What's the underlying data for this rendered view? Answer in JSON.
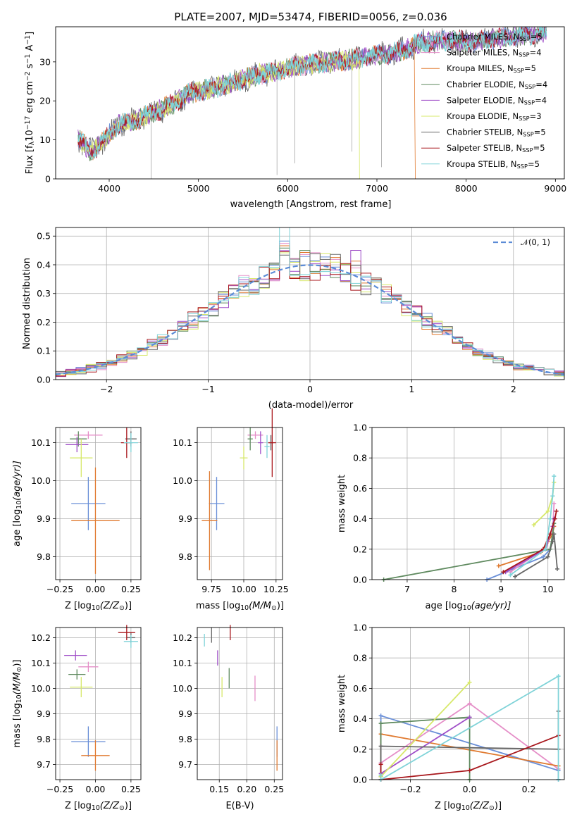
{
  "colors": {
    "Chabrier MILES": "#6a8fd8",
    "Salpeter MILES": "#e58fc8",
    "Kroupa MILES": "#e07a30",
    "Chabrier ELODIE": "#5f8a5f",
    "Salpeter ELODIE": "#a04fc8",
    "Kroupa ELODIE": "#d7e86a",
    "Chabrier STELIB": "#666666",
    "Salpeter STELIB": "#a8171c",
    "Kroupa STELIB": "#7fd3d8",
    "normal": "#5b8bd6"
  },
  "chart_data": [
    {
      "id": "spectrum",
      "type": "line",
      "title": "PLATE=2007, MJD=53474, FIBERID=0056, z=0.036",
      "xlabel": "wavelength [Angstrom, rest frame]",
      "ylabel": "Flux [f",
      "ylabel_sub": "λ",
      "ylabel_mid": "10",
      "ylabel_sup1": "−17",
      "ylabel_rest": " erg cm",
      "ylabel_sup2": "−2",
      "ylabel_rest2": " s",
      "ylabel_sup3": "−1",
      "ylabel_rest3": " A",
      "ylabel_sup4": "−1",
      "ylabel_end": "]",
      "xlim": [
        3400,
        9100
      ],
      "ylim": [
        0,
        39
      ],
      "xticks": [
        4000,
        5000,
        6000,
        7000,
        8000,
        9000
      ],
      "yticks": [
        0,
        10,
        20,
        30
      ],
      "continuum": [
        [
          3650,
          10.5
        ],
        [
          3800,
          7
        ],
        [
          3950,
          10
        ],
        [
          4100,
          14
        ],
        [
          4300,
          15
        ],
        [
          4500,
          17
        ],
        [
          4700,
          19
        ],
        [
          4900,
          22
        ],
        [
          5100,
          23
        ],
        [
          5300,
          24
        ],
        [
          5500,
          25.5
        ],
        [
          5700,
          27
        ],
        [
          5900,
          27.5
        ],
        [
          6100,
          29
        ],
        [
          6300,
          29.5
        ],
        [
          6500,
          30
        ],
        [
          6700,
          30.5
        ],
        [
          6900,
          31.5
        ],
        [
          7100,
          32
        ],
        [
          7300,
          33
        ],
        [
          7500,
          35
        ],
        [
          7700,
          35.5
        ],
        [
          7900,
          35.5
        ],
        [
          8100,
          35
        ],
        [
          8300,
          36
        ],
        [
          8500,
          36.5
        ],
        [
          8700,
          37
        ],
        [
          8900,
          37.5
        ]
      ],
      "legend": [
        {
          "imf": "Chabrier",
          "lib": "MILES",
          "n": "5"
        },
        {
          "imf": "Salpeter",
          "lib": "MILES",
          "n": "4"
        },
        {
          "imf": "Kroupa",
          "lib": "MILES",
          "n": "5"
        },
        {
          "imf": "Chabrier",
          "lib": "ELODIE",
          "n": "4"
        },
        {
          "imf": "Salpeter",
          "lib": "ELODIE",
          "n": "4"
        },
        {
          "imf": "Kroupa",
          "lib": "ELODIE",
          "n": "3"
        },
        {
          "imf": "Chabrier",
          "lib": "STELIB",
          "n": "5"
        },
        {
          "imf": "Salpeter",
          "lib": "STELIB",
          "n": "5"
        },
        {
          "imf": "Kroupa",
          "lib": "STELIB",
          "n": "5"
        }
      ],
      "legend_sub": "SSP",
      "legend_placement": "right"
    },
    {
      "id": "residuals",
      "type": "histogram",
      "xlabel": "(data-model)/error",
      "ylabel": "Normed distribution",
      "xlim": [
        -2.5,
        2.5
      ],
      "ylim": [
        0,
        0.53
      ],
      "xticks": [
        -2,
        -1,
        0,
        1,
        2
      ],
      "xticklabels": [
        "−2",
        "−1",
        "0",
        "1",
        "2"
      ],
      "yticks": [
        0.0,
        0.1,
        0.2,
        0.3,
        0.4,
        0.5
      ],
      "yticklabels": [
        "0.0",
        "0.1",
        "0.2",
        "0.3",
        "0.4",
        "0.5"
      ],
      "bin_width": 0.1,
      "legend_label": "𝒩(0, 1)",
      "legend_placement": "top-right",
      "grid": true
    },
    {
      "id": "age_vs_Z",
      "type": "errorbar",
      "xlabel": "Z [log",
      "xlabel_sub": "10",
      "xlabel_end": "(Z/Z",
      "xlabel_sub2": "⊙",
      "xlabel_close": ")]",
      "ylabel": "age  [log",
      "ylabel_sub": "10",
      "ylabel_end": "(age/yr)]",
      "xlim": [
        -0.28,
        0.32
      ],
      "ylim": [
        9.74,
        10.14
      ],
      "xticks": [
        -0.25,
        0.0,
        0.25
      ],
      "xticklabels": [
        "−0.25",
        "0.00",
        "0.25"
      ],
      "yticks": [
        9.8,
        9.9,
        10.0,
        10.1
      ],
      "yticklabels": [
        "9.8",
        "9.9",
        "10.0",
        "10.1"
      ],
      "points": [
        {
          "model": "Chabrier MILES",
          "x": -0.05,
          "y": 9.94,
          "xerr": 0.12,
          "yerr": 0.07
        },
        {
          "model": "Kroupa MILES",
          "x": 0.0,
          "y": 9.895,
          "xerr": 0.17,
          "yerr": 0.14
        },
        {
          "model": "Salpeter MILES",
          "x": -0.05,
          "y": 10.12,
          "xerr": 0.1,
          "yerr": 0.01
        },
        {
          "model": "Chabrier ELODIE",
          "x": -0.12,
          "y": 10.11,
          "xerr": 0.06,
          "yerr": 0.02
        },
        {
          "model": "Salpeter ELODIE",
          "x": -0.13,
          "y": 10.095,
          "xerr": 0.08,
          "yerr": 0.02
        },
        {
          "model": "Kroupa ELODIE",
          "x": -0.1,
          "y": 10.06,
          "xerr": 0.08,
          "yerr": 0.05
        },
        {
          "model": "Chabrier STELIB",
          "x": 0.25,
          "y": 10.11,
          "xerr": 0.04,
          "yerr": 0.02
        },
        {
          "model": "Salpeter STELIB",
          "x": 0.22,
          "y": 10.1,
          "xerr": 0.04,
          "yerr": 0.04
        },
        {
          "model": "Kroupa STELIB",
          "x": 0.25,
          "y": 10.1,
          "xerr": 0.05,
          "yerr": 0.025
        }
      ]
    },
    {
      "id": "age_vs_mass",
      "type": "errorbar",
      "xlabel": "mass [log",
      "xlabel_sub": "10",
      "xlabel_end": "(M/M",
      "xlabel_sub2": "⊙",
      "xlabel_close": ")]",
      "xlim": [
        9.64,
        10.3
      ],
      "ylim": [
        9.74,
        10.14
      ],
      "xticks": [
        9.75,
        10.0,
        10.25
      ],
      "xticklabels": [
        "9.75",
        "10.00",
        "10.25"
      ],
      "yticks": [
        9.8,
        9.9,
        10.0,
        10.1
      ],
      "yticklabels": [
        "9.8",
        "9.9",
        "10.0",
        "10.1"
      ],
      "points": [
        {
          "model": "Chabrier MILES",
          "x": 9.79,
          "y": 9.94,
          "xerr": 0.06,
          "yerr": 0.07
        },
        {
          "model": "Kroupa MILES",
          "x": 9.735,
          "y": 9.895,
          "xerr": 0.06,
          "yerr": 0.13
        },
        {
          "model": "Salpeter MILES",
          "x": 10.09,
          "y": 10.12,
          "xerr": 0.06,
          "yerr": 0.01
        },
        {
          "model": "Chabrier ELODIE",
          "x": 10.05,
          "y": 10.11,
          "xerr": 0.02,
          "yerr": 0.03
        },
        {
          "model": "Salpeter ELODIE",
          "x": 10.13,
          "y": 10.1,
          "xerr": 0.02,
          "yerr": 0.03
        },
        {
          "model": "Kroupa ELODIE",
          "x": 10.0,
          "y": 10.06,
          "xerr": 0.03,
          "yerr": 0.03
        },
        {
          "model": "Chabrier STELIB",
          "x": 10.21,
          "y": 10.1,
          "xerr": 0.02,
          "yerr": 0.02
        },
        {
          "model": "Salpeter STELIB",
          "x": 10.22,
          "y": 10.1,
          "xerr": 0.03,
          "yerr": 0.09
        },
        {
          "model": "Kroupa STELIB",
          "x": 10.18,
          "y": 10.09,
          "xerr": 0.02,
          "yerr": 0.03
        }
      ]
    },
    {
      "id": "massweight_vs_age",
      "type": "line",
      "xlabel": "age  [log",
      "xlabel_sub": "10",
      "xlabel_end": "(age/yr)]",
      "ylabel": "mass weight",
      "xlim": [
        6.25,
        10.35
      ],
      "ylim": [
        0.0,
        1.0
      ],
      "xticks": [
        7,
        8,
        9,
        10
      ],
      "yticks": [
        0.0,
        0.2,
        0.4,
        0.6,
        0.8,
        1.0
      ],
      "yticklabels": [
        "0.0",
        "0.2",
        "0.4",
        "0.6",
        "0.8",
        "1.0"
      ],
      "grid": true,
      "series": [
        {
          "model": "Chabrier MILES",
          "x": [
            8.7,
            9.9,
            10.05,
            10.1,
            10.13
          ],
          "y": [
            0.0,
            0.15,
            0.2,
            0.3,
            0.4
          ]
        },
        {
          "model": "Salpeter MILES",
          "x": [
            9.2,
            9.9,
            10.1,
            10.13
          ],
          "y": [
            0.05,
            0.2,
            0.3,
            0.5
          ]
        },
        {
          "model": "Kroupa MILES",
          "x": [
            8.95,
            9.85,
            10.0,
            10.1,
            10.13
          ],
          "y": [
            0.09,
            0.18,
            0.25,
            0.3,
            0.35
          ]
        },
        {
          "model": "Chabrier ELODIE",
          "x": [
            6.5,
            10.05,
            10.1,
            10.13
          ],
          "y": [
            0.0,
            0.2,
            0.3,
            0.37
          ]
        },
        {
          "model": "Salpeter ELODIE",
          "x": [
            9.1,
            9.95,
            10.1,
            10.13
          ],
          "y": [
            0.05,
            0.2,
            0.35,
            0.4
          ]
        },
        {
          "model": "Kroupa ELODIE",
          "x": [
            9.7,
            10.0,
            10.1,
            10.13
          ],
          "y": [
            0.36,
            0.45,
            0.55,
            0.64
          ]
        },
        {
          "model": "Chabrier STELIB",
          "x": [
            9.3,
            10.0,
            10.1,
            10.13,
            10.2
          ],
          "y": [
            0.02,
            0.15,
            0.25,
            0.3,
            0.07
          ]
        },
        {
          "model": "Salpeter STELIB",
          "x": [
            9.05,
            9.9,
            10.05,
            10.15,
            10.18
          ],
          "y": [
            0.05,
            0.2,
            0.3,
            0.4,
            0.45
          ]
        },
        {
          "model": "Kroupa STELIB",
          "x": [
            9.2,
            9.95,
            10.05,
            10.1,
            10.13
          ],
          "y": [
            0.03,
            0.2,
            0.4,
            0.55,
            0.68
          ]
        }
      ]
    },
    {
      "id": "mass_vs_Z",
      "type": "errorbar",
      "xlabel": "Z [log",
      "xlabel_sub": "10",
      "xlabel_end": "(Z/Z",
      "xlabel_sub2": "⊙",
      "xlabel_close": ")]",
      "ylabel": "mass [log",
      "ylabel_sub": "10",
      "ylabel_end": "(M/M",
      "ylabel_sub2": "⊙",
      "ylabel_close": ")]",
      "xlim": [
        -0.28,
        0.32
      ],
      "ylim": [
        9.64,
        10.24
      ],
      "xticks": [
        -0.25,
        0.0,
        0.25
      ],
      "xticklabels": [
        "−0.25",
        "0.00",
        "0.25"
      ],
      "yticks": [
        9.7,
        9.8,
        9.9,
        10.0,
        10.1,
        10.2
      ],
      "yticklabels": [
        "9.7",
        "9.8",
        "9.9",
        "10.0",
        "10.1",
        "10.2"
      ],
      "points": [
        {
          "model": "Chabrier MILES",
          "x": -0.05,
          "y": 9.79,
          "xerr": 0.12,
          "yerr": 0.06
        },
        {
          "model": "Kroupa MILES",
          "x": 0.0,
          "y": 9.735,
          "xerr": 0.1,
          "yerr": 0.06
        },
        {
          "model": "Salpeter MILES",
          "x": -0.05,
          "y": 10.085,
          "xerr": 0.07,
          "yerr": 0.02
        },
        {
          "model": "Chabrier ELODIE",
          "x": -0.13,
          "y": 10.055,
          "xerr": 0.06,
          "yerr": 0.02
        },
        {
          "model": "Salpeter ELODIE",
          "x": -0.14,
          "y": 10.13,
          "xerr": 0.08,
          "yerr": 0.02
        },
        {
          "model": "Kroupa ELODIE",
          "x": -0.1,
          "y": 10.005,
          "xerr": 0.08,
          "yerr": 0.04
        },
        {
          "model": "Chabrier STELIB",
          "x": 0.25,
          "y": 10.2,
          "xerr": 0.03,
          "yerr": 0.02
        },
        {
          "model": "Salpeter STELIB",
          "x": 0.22,
          "y": 10.22,
          "xerr": 0.06,
          "yerr": 0.03
        },
        {
          "model": "Kroupa STELIB",
          "x": 0.25,
          "y": 10.185,
          "xerr": 0.05,
          "yerr": 0.025
        }
      ]
    },
    {
      "id": "mass_vs_ebv",
      "type": "errorbar",
      "xlabel": "E(B-V)",
      "xlim": [
        0.11,
        0.265
      ],
      "ylim": [
        9.64,
        10.24
      ],
      "xticks": [
        0.15,
        0.2,
        0.25
      ],
      "xticklabels": [
        "0.15",
        "0.20",
        "0.25"
      ],
      "yticks": [
        9.7,
        9.8,
        9.9,
        10.0,
        10.1,
        10.2
      ],
      "yticklabels": [
        "9.7",
        "9.8",
        "9.9",
        "10.0",
        "10.1",
        "10.2"
      ],
      "points": [
        {
          "model": "Chabrier MILES",
          "x": 0.255,
          "y": 9.79,
          "xerr": 0.0,
          "yerr": 0.06
        },
        {
          "model": "Kroupa MILES",
          "x": 0.255,
          "y": 9.735,
          "xerr": 0.0,
          "yerr": 0.06
        },
        {
          "model": "Salpeter MILES",
          "x": 0.215,
          "y": 10.0,
          "xerr": 0.0,
          "yerr": 0.05
        },
        {
          "model": "Chabrier ELODIE",
          "x": 0.168,
          "y": 10.04,
          "xerr": 0.0,
          "yerr": 0.04
        },
        {
          "model": "Salpeter ELODIE",
          "x": 0.147,
          "y": 10.12,
          "xerr": 0.0,
          "yerr": 0.03
        },
        {
          "model": "Kroupa ELODIE",
          "x": 0.155,
          "y": 10.005,
          "xerr": 0.0,
          "yerr": 0.04
        },
        {
          "model": "Chabrier STELIB",
          "x": 0.136,
          "y": 10.21,
          "xerr": 0.0,
          "yerr": 0.03
        },
        {
          "model": "Salpeter STELIB",
          "x": 0.17,
          "y": 10.22,
          "xerr": 0.0,
          "yerr": 0.03
        },
        {
          "model": "Kroupa STELIB",
          "x": 0.123,
          "y": 10.19,
          "xerr": 0.0,
          "yerr": 0.025
        }
      ]
    },
    {
      "id": "massweight_vs_Z",
      "type": "line",
      "xlabel": "Z [log",
      "xlabel_sub": "10",
      "xlabel_end": "(Z/Z",
      "xlabel_sub2": "⊙",
      "xlabel_close": ")]",
      "ylabel": "mass weight",
      "xlim": [
        -0.33,
        0.32
      ],
      "ylim": [
        0.0,
        1.0
      ],
      "xticks": [
        -0.2,
        0.0,
        0.2
      ],
      "xticklabels": [
        "−0.2",
        "0.0",
        "0.2"
      ],
      "yticks": [
        0.0,
        0.2,
        0.4,
        0.6,
        0.8,
        1.0
      ],
      "yticklabels": [
        "0.0",
        "0.2",
        "0.4",
        "0.6",
        "0.8",
        "1.0"
      ],
      "grid": true,
      "series": [
        {
          "model": "Chabrier MILES",
          "x": [
            -0.3,
            -0.3,
            0.3,
            0.3
          ],
          "y": [
            0.02,
            0.42,
            0.06,
            0.0
          ]
        },
        {
          "model": "Salpeter MILES",
          "x": [
            -0.3,
            0.0,
            0.3
          ],
          "y": [
            0.11,
            0.5,
            0.07
          ]
        },
        {
          "model": "Kroupa MILES",
          "x": [
            -0.3,
            -0.3,
            0.3
          ],
          "y": [
            0.0,
            0.3,
            0.09
          ]
        },
        {
          "model": "Chabrier ELODIE",
          "x": [
            -0.3,
            -0.3,
            0.0,
            0.0
          ],
          "y": [
            0.02,
            0.37,
            0.41,
            0.0
          ]
        },
        {
          "model": "Salpeter ELODIE",
          "x": [
            -0.3,
            0.0
          ],
          "y": [
            0.04,
            0.41
          ]
        },
        {
          "model": "Kroupa ELODIE",
          "x": [
            -0.3,
            0.0
          ],
          "y": [
            0.02,
            0.64
          ]
        },
        {
          "model": "Chabrier STELIB",
          "x": [
            -0.3,
            -0.3,
            0.3,
            0.3
          ],
          "y": [
            0.0,
            0.22,
            0.2,
            0.45
          ]
        },
        {
          "model": "Salpeter STELIB",
          "x": [
            -0.3,
            -0.3,
            0.0,
            0.3
          ],
          "y": [
            0.1,
            0.0,
            0.06,
            0.29
          ]
        },
        {
          "model": "Kroupa STELIB",
          "x": [
            -0.3,
            -0.3,
            0.3,
            0.3
          ],
          "y": [
            0.03,
            0.0,
            0.68,
            0.0
          ]
        }
      ]
    }
  ]
}
